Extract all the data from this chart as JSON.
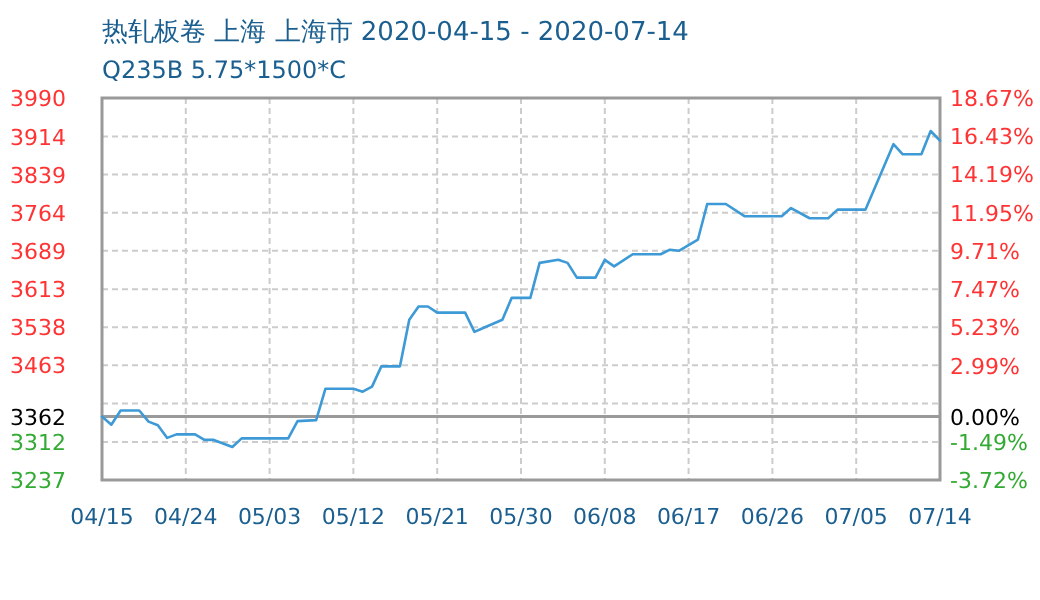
{
  "chart_data": {
    "type": "line",
    "title": "热轧板卷 上海 上海市 2020-04-15 - 2020-07-14",
    "subtitle": "Q235B 5.75*1500*C",
    "x": [
      "--04-15",
      "--04-16",
      "--04-17",
      "--04-19",
      "--04-20",
      "--04-21",
      "--04-22",
      "--04-23",
      "--04-25",
      "--04-26",
      "--04-27",
      "--04-29",
      "--04-30",
      "--05-05",
      "--05-06",
      "--05-08",
      "--05-09",
      "--05-12",
      "--05-13",
      "--05-14",
      "--05-15",
      "--05-17",
      "--05-18",
      "--05-19",
      "--05-20",
      "--05-21",
      "--05-24",
      "--05-25",
      "--05-26",
      "--05-28",
      "--05-29",
      "--05-31",
      "--06-01",
      "--06-03",
      "--06-04",
      "--06-05",
      "--06-07",
      "--06-08",
      "--06-09",
      "--06-11",
      "--06-14",
      "--06-15",
      "--06-16",
      "--06-18",
      "--06-19",
      "--06-21",
      "--06-23",
      "--06-27",
      "--06-28",
      "--06-30",
      "--07-02",
      "--07-03",
      "--07-06",
      "--07-08",
      "--07-09",
      "--07-10",
      "--07-12",
      "--07-13",
      "--07-14"
    ],
    "series": [
      {
        "color": "#3d9ad6",
        "values": [
          3362,
          3346,
          3374,
          3374,
          3352,
          3345,
          3320,
          3327,
          3327,
          3316,
          3316,
          3302,
          3319,
          3319,
          3353,
          3355,
          3417,
          3417,
          3411,
          3421,
          3461,
          3461,
          3553,
          3579,
          3579,
          3567,
          3567,
          3529,
          3537,
          3553,
          3596,
          3596,
          3665,
          3671,
          3665,
          3636,
          3636,
          3671,
          3658,
          3682,
          3682,
          3691,
          3689,
          3711,
          3781,
          3781,
          3757,
          3757,
          3773,
          3753,
          3753,
          3770,
          3770,
          3856,
          3899,
          3879,
          3879,
          3925,
          3906
        ]
      }
    ],
    "xlim": [
      "--04-15",
      "--07-14"
    ],
    "xticks": [
      {
        "value": "--04-15",
        "label": "04/15"
      },
      {
        "value": "--04-24",
        "label": "04/24"
      },
      {
        "value": "--05-03",
        "label": "05/03"
      },
      {
        "value": "--05-12",
        "label": "05/12"
      },
      {
        "value": "--05-21",
        "label": "05/21"
      },
      {
        "value": "--05-30",
        "label": "05/30"
      },
      {
        "value": "--06-08",
        "label": "06/08"
      },
      {
        "value": "--06-17",
        "label": "06/17"
      },
      {
        "value": "--06-26",
        "label": "06/26"
      },
      {
        "value": "--07-05",
        "label": "07/05"
      },
      {
        "value": "--07-14",
        "label": "07/14"
      }
    ],
    "ylim": [
      3237,
      3990
    ],
    "yticks": [
      3237,
      3312,
      {
        "value": 3387.6,
        "label": null
      },
      3362,
      3463,
      3538,
      3613,
      3689,
      3764,
      3839,
      3914,
      3990
    ],
    "y2lim": [
      -3.72,
      18.67
    ],
    "y2ticks": [
      {
        "value": -3.72,
        "label": "-3.72%"
      },
      {
        "value": -1.49,
        "label": "-1.49%"
      },
      {
        "value": 0,
        "label": "0.00%"
      },
      {
        "value": 2.99,
        "label": "2.99%"
      },
      {
        "value": 5.23,
        "label": "5.23%"
      },
      {
        "value": 7.47,
        "label": "7.47%"
      },
      {
        "value": 9.71,
        "label": "9.71%"
      },
      {
        "value": 11.95,
        "label": "11.95%"
      },
      {
        "value": 14.19,
        "label": "14.19%"
      },
      {
        "value": 16.43,
        "label": "16.43%"
      },
      {
        "value": 18.67,
        "label": "18.67%"
      }
    ],
    "ref_lines": [
      {
        "axis": "y",
        "value": 3362,
        "color": "#999999"
      }
    ],
    "grid": true
  }
}
